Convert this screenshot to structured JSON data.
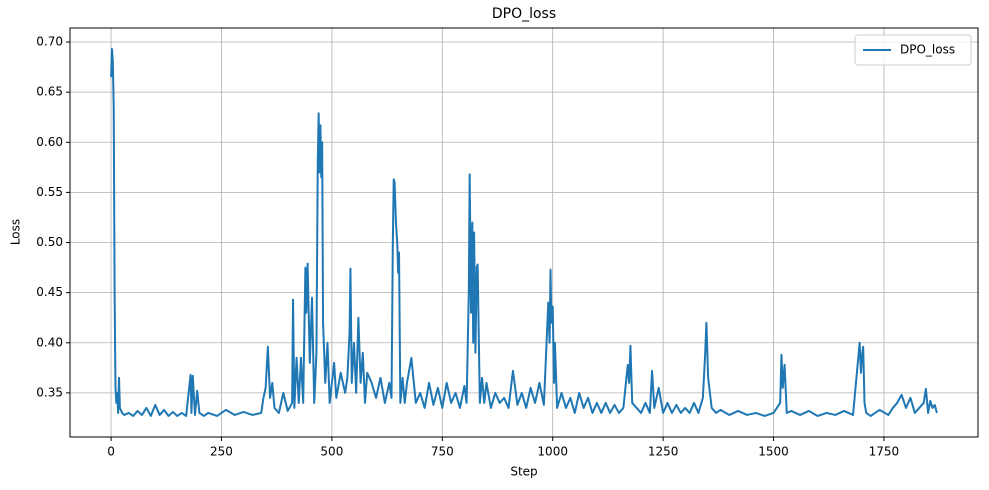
{
  "chart_data": {
    "type": "line",
    "title": "DPO_loss",
    "xlabel": "Step",
    "ylabel": "Loss",
    "x": [
      0,
      2,
      4,
      6,
      8,
      10,
      12,
      14,
      16,
      18,
      20,
      25,
      30,
      40,
      50,
      60,
      70,
      80,
      90,
      100,
      110,
      120,
      130,
      140,
      150,
      160,
      170,
      180,
      182,
      185,
      190,
      195,
      200,
      210,
      220,
      240,
      260,
      280,
      300,
      320,
      340,
      345,
      350,
      355,
      360,
      365,
      370,
      380,
      390,
      400,
      410,
      412,
      415,
      420,
      425,
      430,
      435,
      440,
      442,
      445,
      450,
      455,
      460,
      465,
      468,
      470,
      472,
      474,
      476,
      478,
      480,
      485,
      490,
      495,
      500,
      505,
      510,
      520,
      530,
      535,
      540,
      542,
      545,
      550,
      555,
      560,
      565,
      570,
      575,
      580,
      590,
      600,
      610,
      620,
      630,
      635,
      638,
      640,
      642,
      645,
      648,
      650,
      652,
      655,
      660,
      665,
      670,
      680,
      690,
      700,
      710,
      720,
      730,
      740,
      750,
      760,
      770,
      780,
      790,
      800,
      805,
      810,
      812,
      815,
      818,
      820,
      822,
      825,
      828,
      830,
      835,
      840,
      845,
      850,
      860,
      870,
      880,
      890,
      900,
      910,
      920,
      930,
      940,
      950,
      960,
      970,
      980,
      990,
      993,
      995,
      997,
      1000,
      1003,
      1005,
      1010,
      1020,
      1030,
      1040,
      1050,
      1060,
      1070,
      1080,
      1090,
      1100,
      1110,
      1120,
      1130,
      1140,
      1150,
      1160,
      1170,
      1173,
      1176,
      1180,
      1190,
      1200,
      1210,
      1220,
      1225,
      1230,
      1240,
      1250,
      1260,
      1270,
      1280,
      1290,
      1300,
      1310,
      1320,
      1330,
      1340,
      1345,
      1348,
      1352,
      1360,
      1370,
      1380,
      1400,
      1420,
      1440,
      1460,
      1480,
      1500,
      1515,
      1518,
      1521,
      1525,
      1530,
      1540,
      1560,
      1580,
      1600,
      1620,
      1640,
      1660,
      1680,
      1695,
      1698,
      1700,
      1703,
      1706,
      1710,
      1720,
      1740,
      1760,
      1770,
      1780,
      1790,
      1800,
      1810,
      1820,
      1830,
      1840,
      1845,
      1850,
      1855,
      1860,
      1865,
      1870
    ],
    "series": [
      {
        "name": "DPO_loss",
        "color": "#1f77b4",
        "values": [
          0.665,
          0.693,
          0.68,
          0.635,
          0.45,
          0.355,
          0.34,
          0.35,
          0.33,
          0.365,
          0.335,
          0.33,
          0.328,
          0.33,
          0.327,
          0.332,
          0.328,
          0.335,
          0.327,
          0.338,
          0.328,
          0.333,
          0.327,
          0.331,
          0.327,
          0.33,
          0.327,
          0.368,
          0.33,
          0.367,
          0.328,
          0.352,
          0.33,
          0.327,
          0.33,
          0.327,
          0.333,
          0.328,
          0.331,
          0.328,
          0.33,
          0.345,
          0.355,
          0.396,
          0.345,
          0.36,
          0.335,
          0.33,
          0.35,
          0.332,
          0.34,
          0.443,
          0.335,
          0.385,
          0.34,
          0.385,
          0.34,
          0.475,
          0.43,
          0.479,
          0.38,
          0.445,
          0.34,
          0.39,
          0.58,
          0.629,
          0.57,
          0.617,
          0.565,
          0.6,
          0.42,
          0.36,
          0.4,
          0.34,
          0.36,
          0.38,
          0.345,
          0.37,
          0.35,
          0.365,
          0.41,
          0.474,
          0.36,
          0.4,
          0.35,
          0.425,
          0.36,
          0.39,
          0.34,
          0.37,
          0.36,
          0.345,
          0.365,
          0.34,
          0.36,
          0.345,
          0.5,
          0.563,
          0.56,
          0.52,
          0.5,
          0.47,
          0.49,
          0.34,
          0.365,
          0.34,
          0.36,
          0.385,
          0.34,
          0.35,
          0.335,
          0.36,
          0.338,
          0.355,
          0.335,
          0.36,
          0.34,
          0.35,
          0.335,
          0.357,
          0.34,
          0.45,
          0.568,
          0.43,
          0.52,
          0.4,
          0.51,
          0.39,
          0.475,
          0.478,
          0.34,
          0.365,
          0.34,
          0.36,
          0.335,
          0.35,
          0.34,
          0.345,
          0.335,
          0.372,
          0.338,
          0.35,
          0.335,
          0.355,
          0.34,
          0.36,
          0.338,
          0.44,
          0.4,
          0.473,
          0.42,
          0.436,
          0.36,
          0.4,
          0.335,
          0.35,
          0.335,
          0.345,
          0.33,
          0.35,
          0.335,
          0.345,
          0.33,
          0.34,
          0.33,
          0.34,
          0.33,
          0.338,
          0.33,
          0.335,
          0.378,
          0.36,
          0.397,
          0.34,
          0.335,
          0.33,
          0.34,
          0.33,
          0.372,
          0.335,
          0.355,
          0.33,
          0.34,
          0.33,
          0.338,
          0.33,
          0.335,
          0.33,
          0.34,
          0.33,
          0.345,
          0.387,
          0.42,
          0.365,
          0.335,
          0.33,
          0.333,
          0.328,
          0.332,
          0.328,
          0.33,
          0.327,
          0.33,
          0.34,
          0.388,
          0.355,
          0.378,
          0.33,
          0.332,
          0.328,
          0.332,
          0.327,
          0.33,
          0.328,
          0.332,
          0.328,
          0.4,
          0.37,
          0.385,
          0.396,
          0.34,
          0.33,
          0.327,
          0.333,
          0.328,
          0.335,
          0.34,
          0.348,
          0.335,
          0.345,
          0.33,
          0.335,
          0.34,
          0.354,
          0.33,
          0.342,
          0.335,
          0.338,
          0.33
        ]
      }
    ],
    "xlim": [
      -93,
      1963
    ],
    "ylim": [
      0.306,
      0.714
    ],
    "xticks": [
      0,
      250,
      500,
      750,
      1000,
      1250,
      1500,
      1750
    ],
    "yticks": [
      0.35,
      {
        "value": 0.4,
        "label": "0.40"
      },
      0.45,
      {
        "value": 0.5,
        "label": "0.50"
      },
      0.55,
      {
        "value": 0.6,
        "label": "0.60"
      },
      0.65,
      {
        "value": 0.7,
        "label": "0.70"
      }
    ],
    "grid": true,
    "legend": "upper right"
  }
}
